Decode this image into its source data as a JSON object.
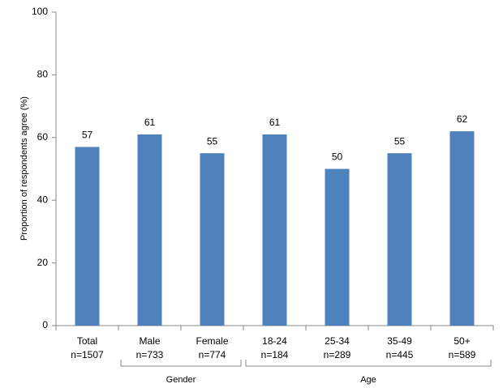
{
  "chart_data": {
    "type": "bar",
    "y_label": "Proportion of respondents agree (%)",
    "categories": [
      "Total",
      "Male",
      "Female",
      "18-24",
      "25-34",
      "35-49",
      "50+"
    ],
    "sample_sizes": [
      "n=1507",
      "n=733",
      "n=774",
      "n=184",
      "n=289",
      "n=445",
      "n=589"
    ],
    "groups": [
      {
        "label": "Gender",
        "categories": [
          "Male",
          "Female"
        ]
      },
      {
        "label": "Age",
        "categories": [
          "18-24",
          "25-34",
          "35-49",
          "50+"
        ]
      }
    ],
    "values": [
      57,
      61,
      55,
      61,
      50,
      55,
      62
    ],
    "color": "#4f81bd",
    "ylim": [
      0,
      100
    ],
    "yticks": [
      0,
      20,
      40,
      60,
      80,
      100
    ],
    "grid": false
  }
}
